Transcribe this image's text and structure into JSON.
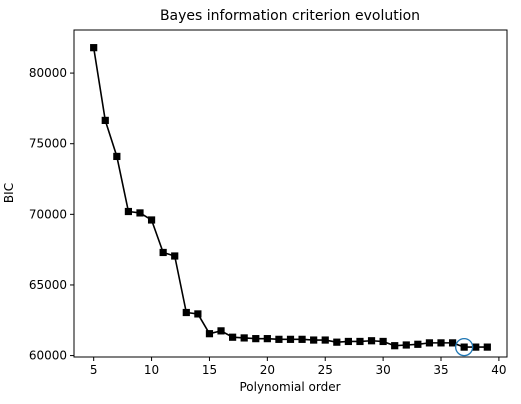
{
  "chart_data": {
    "type": "line",
    "title": "Bayes information criterion evolution",
    "xlabel": "Polynomial order",
    "ylabel": "BIC",
    "xlim": [
      3.3,
      40.7
    ],
    "ylim": [
      59900,
      83050
    ],
    "xticks": [
      5,
      10,
      15,
      20,
      25,
      30,
      35,
      40
    ],
    "xtick_labels": [
      "5",
      "10",
      "15",
      "20",
      "25",
      "30",
      "35",
      "40"
    ],
    "yticks": [
      60000,
      65000,
      70000,
      75000,
      80000
    ],
    "ytick_labels": [
      "60000",
      "65000",
      "70000",
      "75000",
      "80000"
    ],
    "grid": false,
    "series": [
      {
        "color": "#000000",
        "marker": "square",
        "x": [
          5,
          6,
          7,
          8,
          9,
          10,
          11,
          12,
          13,
          14,
          15,
          16,
          17,
          18,
          19,
          20,
          21,
          22,
          23,
          24,
          25,
          26,
          27,
          28,
          29,
          30,
          31,
          32,
          33,
          34,
          35,
          36,
          37,
          38,
          39
        ],
        "y": [
          81800,
          76650,
          74100,
          70200,
          70100,
          69600,
          67300,
          67050,
          63050,
          62950,
          61550,
          61750,
          61300,
          61250,
          61200,
          61200,
          61150,
          61150,
          61150,
          61100,
          61100,
          60950,
          61000,
          61000,
          61050,
          61000,
          60700,
          60750,
          60800,
          60900,
          60900,
          60900,
          60600,
          60600,
          60600
        ]
      }
    ],
    "highlight": {
      "x": 37,
      "y": 60600,
      "shape": "circle",
      "color": "#1f77b4"
    }
  }
}
